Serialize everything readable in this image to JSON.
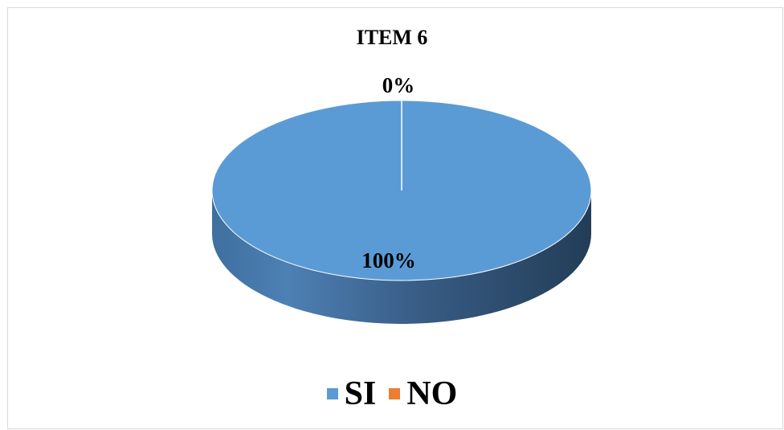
{
  "chart_data": {
    "type": "pie",
    "title": "ITEM 6",
    "categories": [
      "SI",
      "NO"
    ],
    "values": [
      100,
      0
    ],
    "data_labels": [
      "100%",
      "0%"
    ],
    "colors": [
      "#5b9bd5",
      "#ed7d31"
    ],
    "style": "3d",
    "legend_position": "bottom"
  }
}
